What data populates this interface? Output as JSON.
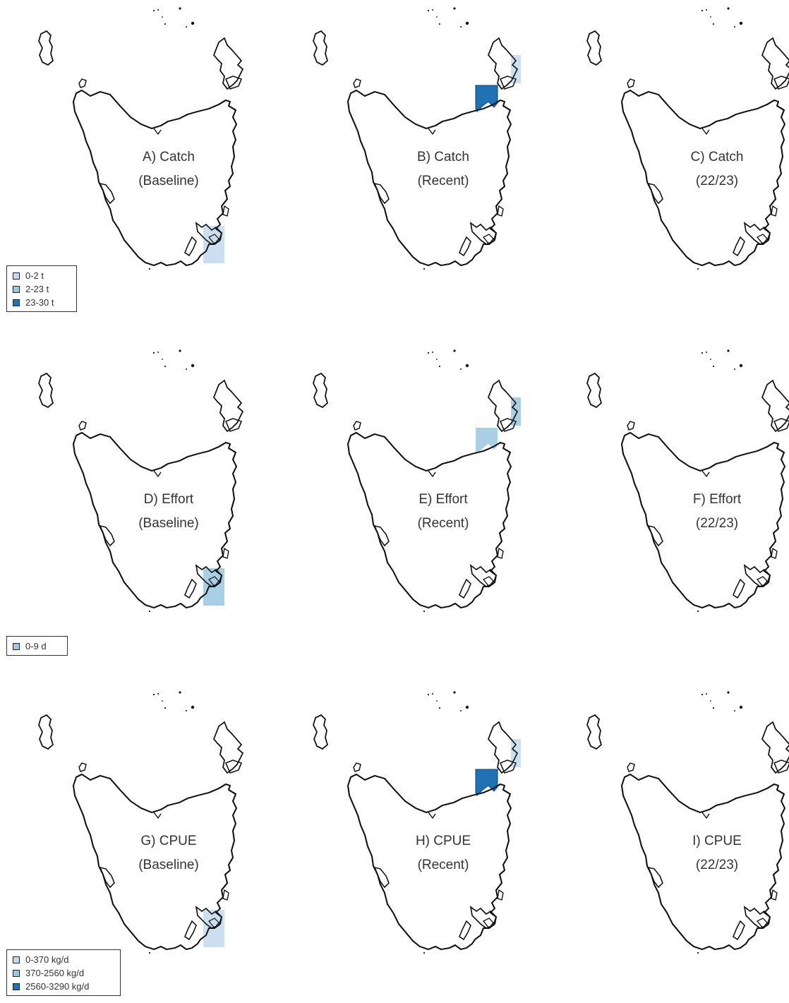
{
  "colors": {
    "light": "#c6dbef",
    "medium": "#9ecae1",
    "dark": "#2171b5",
    "coast": "#111111"
  },
  "panels": [
    {
      "id": "A",
      "line1": "A) Catch",
      "line2": "(Baseline)",
      "blocks": [
        {
          "region": "south-east",
          "level": "light"
        }
      ]
    },
    {
      "id": "B",
      "line1": "B) Catch",
      "line2": "(Recent)",
      "blocks": [
        {
          "region": "north",
          "level": "dark"
        },
        {
          "region": "north-east",
          "level": "light"
        }
      ]
    },
    {
      "id": "C",
      "line1": "C) Catch",
      "line2": "(22/23)",
      "blocks": []
    },
    {
      "id": "D",
      "line1": "D) Effort",
      "line2": "(Baseline)",
      "blocks": [
        {
          "region": "south-east",
          "level": "medium"
        }
      ]
    },
    {
      "id": "E",
      "line1": "E) Effort",
      "line2": "(Recent)",
      "blocks": [
        {
          "region": "north",
          "level": "medium"
        },
        {
          "region": "north-east",
          "level": "medium"
        }
      ]
    },
    {
      "id": "F",
      "line1": "F) Effort",
      "line2": "(22/23)",
      "blocks": []
    },
    {
      "id": "G",
      "line1": "G) CPUE",
      "line2": "(Baseline)",
      "blocks": [
        {
          "region": "south-east",
          "level": "light"
        }
      ]
    },
    {
      "id": "H",
      "line1": "H) CPUE",
      "line2": "(Recent)",
      "blocks": [
        {
          "region": "north",
          "level": "dark"
        },
        {
          "region": "north-east",
          "level": "light"
        }
      ]
    },
    {
      "id": "I",
      "line1": "I) CPUE",
      "line2": "(22/23)",
      "blocks": []
    }
  ],
  "legends": {
    "catch": [
      {
        "label": "0-2 t",
        "color": "#c6dbef"
      },
      {
        "label": "2-23 t",
        "color": "#9ecae1"
      },
      {
        "label": "23-30 t",
        "color": "#2171b5"
      }
    ],
    "effort": [
      {
        "label": "0-9 d",
        "color": "#9ecae1"
      }
    ],
    "cpue": [
      {
        "label": "0-370 kg/d",
        "color": "#c6dbef"
      },
      {
        "label": "370-2560 kg/d",
        "color": "#9ecae1"
      },
      {
        "label": "2560-3290 kg/d",
        "color": "#2171b5"
      }
    ]
  }
}
